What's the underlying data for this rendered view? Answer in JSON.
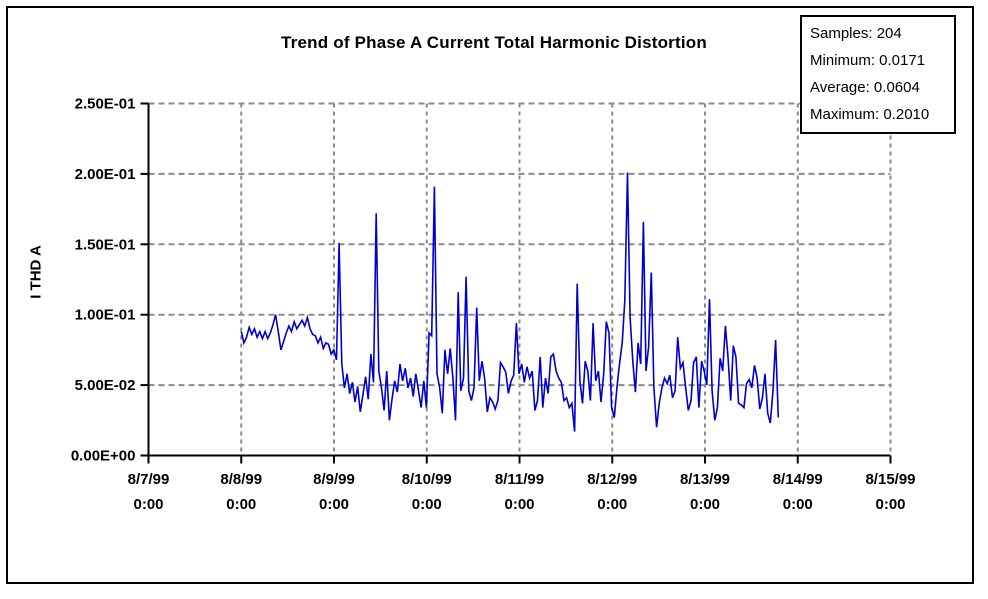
{
  "figure": {
    "title": "Trend of Phase A Current Total Harmonic Distortion"
  },
  "stats_box": {
    "lines": [
      "Samples: 204",
      "Minimum: 0.0171",
      "Average: 0.0604",
      "Maximum: 0.2010"
    ],
    "samples": 204,
    "minimum": 0.0171,
    "average": 0.0604,
    "maximum": 0.201
  },
  "chart_data": {
    "type": "line",
    "title": "Trend of Phase A Current Total Harmonic Distortion",
    "xlabel": "",
    "ylabel": "I THD A",
    "ylim": [
      0,
      0.25
    ],
    "grid": true,
    "grid_color": "#8a8a8a",
    "line_color": "#0000cc",
    "y_ticks": [
      {
        "value": 0.0,
        "label": "0.00E+00"
      },
      {
        "value": 0.05,
        "label": "5.00E-02"
      },
      {
        "value": 0.1,
        "label": "1.00E-01"
      },
      {
        "value": 0.15,
        "label": "1.50E-01"
      },
      {
        "value": 0.2,
        "label": "2.00E-01"
      },
      {
        "value": 0.25,
        "label": "2.50E-01"
      }
    ],
    "x_ticks": [
      {
        "day": 0,
        "date": "8/7/99",
        "time": "0:00"
      },
      {
        "day": 1,
        "date": "8/8/99",
        "time": "0:00"
      },
      {
        "day": 2,
        "date": "8/9/99",
        "time": "0:00"
      },
      {
        "day": 3,
        "date": "8/10/99",
        "time": "0:00"
      },
      {
        "day": 4,
        "date": "8/11/99",
        "time": "0:00"
      },
      {
        "day": 5,
        "date": "8/12/99",
        "time": "0:00"
      },
      {
        "day": 6,
        "date": "8/13/99",
        "time": "0:00"
      },
      {
        "day": 7,
        "date": "8/14/99",
        "time": "0:00"
      },
      {
        "day": 8,
        "date": "8/15/99",
        "time": "0:00"
      }
    ],
    "x_axis_span_days": 8,
    "series": [
      {
        "name": "I THD A",
        "color": "#0000cc",
        "x_range_days": [
          1.0,
          6.79
        ],
        "values": [
          0.088,
          0.08,
          0.084,
          0.091,
          0.086,
          0.09,
          0.084,
          0.088,
          0.083,
          0.088,
          0.083,
          0.087,
          0.093,
          0.1,
          0.088,
          0.075,
          0.081,
          0.087,
          0.092,
          0.088,
          0.095,
          0.09,
          0.093,
          0.096,
          0.092,
          0.098,
          0.09,
          0.086,
          0.085,
          0.08,
          0.084,
          0.076,
          0.08,
          0.079,
          0.072,
          0.075,
          0.068,
          0.151,
          0.065,
          0.048,
          0.058,
          0.044,
          0.052,
          0.038,
          0.049,
          0.031,
          0.043,
          0.056,
          0.04,
          0.072,
          0.052,
          0.172,
          0.06,
          0.048,
          0.032,
          0.06,
          0.025,
          0.04,
          0.053,
          0.045,
          0.065,
          0.053,
          0.062,
          0.048,
          0.055,
          0.042,
          0.058,
          0.046,
          0.034,
          0.053,
          0.034,
          0.087,
          0.085,
          0.191,
          0.058,
          0.048,
          0.03,
          0.075,
          0.058,
          0.076,
          0.055,
          0.025,
          0.116,
          0.046,
          0.055,
          0.127,
          0.046,
          0.039,
          0.048,
          0.105,
          0.053,
          0.067,
          0.055,
          0.031,
          0.041,
          0.038,
          0.033,
          0.039,
          0.066,
          0.063,
          0.059,
          0.044,
          0.053,
          0.057,
          0.094,
          0.058,
          0.065,
          0.052,
          0.063,
          0.055,
          0.06,
          0.032,
          0.039,
          0.07,
          0.034,
          0.055,
          0.044,
          0.07,
          0.072,
          0.06,
          0.055,
          0.052,
          0.039,
          0.041,
          0.034,
          0.037,
          0.017,
          0.122,
          0.053,
          0.037,
          0.067,
          0.06,
          0.039,
          0.094,
          0.053,
          0.06,
          0.038,
          0.058,
          0.095,
          0.087,
          0.034,
          0.027,
          0.048,
          0.065,
          0.08,
          0.11,
          0.201,
          0.098,
          0.067,
          0.045,
          0.08,
          0.065,
          0.166,
          0.06,
          0.077,
          0.13,
          0.048,
          0.02,
          0.037,
          0.048,
          0.055,
          0.051,
          0.057,
          0.041,
          0.046,
          0.084,
          0.062,
          0.066,
          0.048,
          0.032,
          0.039,
          0.066,
          0.07,
          0.034,
          0.067,
          0.06,
          0.05,
          0.111,
          0.046,
          0.025,
          0.034,
          0.069,
          0.06,
          0.092,
          0.07,
          0.039,
          0.078,
          0.07,
          0.037,
          0.036,
          0.034,
          0.051,
          0.054,
          0.048,
          0.064,
          0.055,
          0.033,
          0.041,
          0.058,
          0.03,
          0.023,
          0.046,
          0.082,
          0.027
        ]
      }
    ],
    "annotations": [
      "Samples: 204",
      "Minimum: 0.0171",
      "Average: 0.0604",
      "Maximum: 0.2010"
    ],
    "legend_position": "none"
  }
}
